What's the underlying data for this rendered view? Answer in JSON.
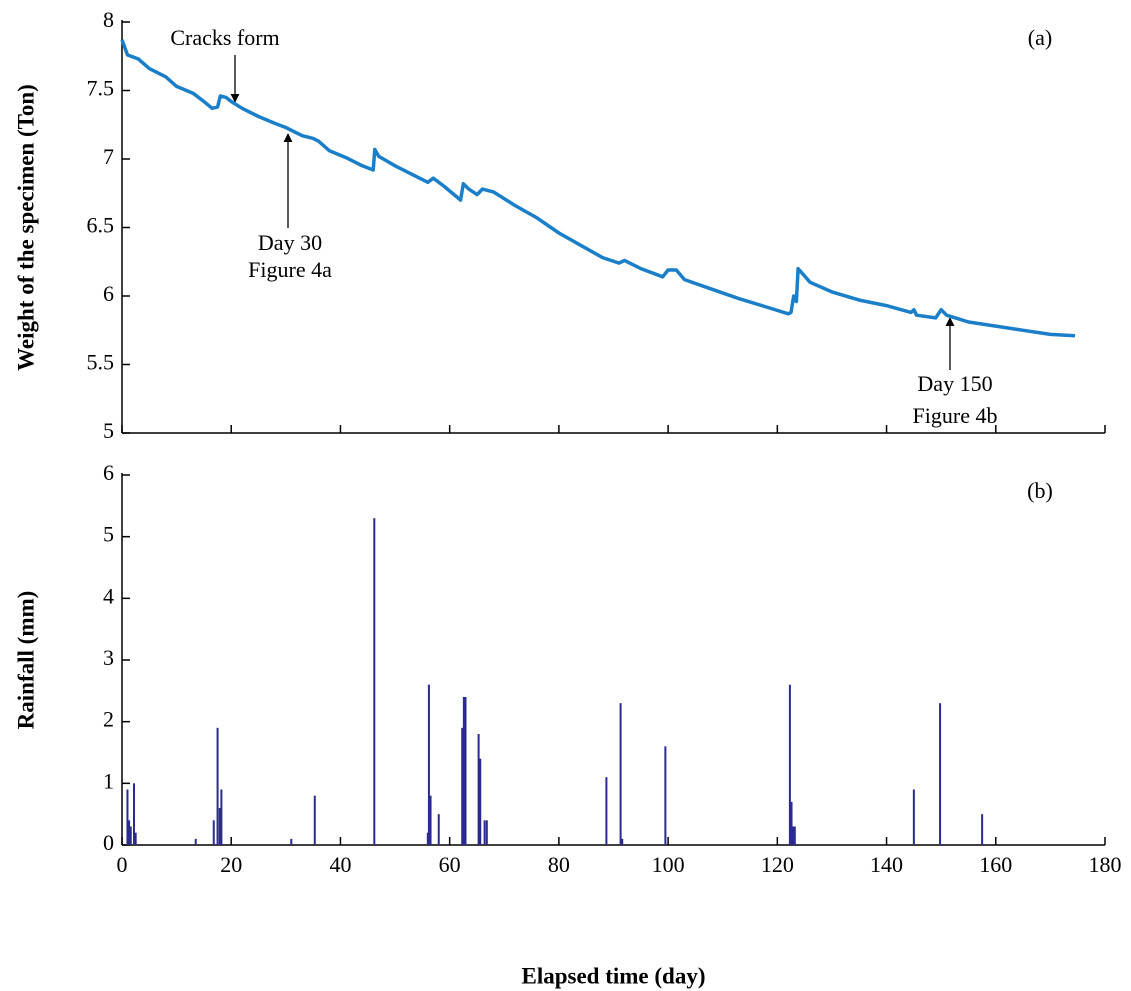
{
  "chart_data": [
    {
      "type": "line",
      "panel_label": "(a)",
      "ylabel": "Weight of the specimen (Ton)",
      "xlim": [
        0,
        180
      ],
      "xticks": [
        0,
        20,
        40,
        60,
        80,
        100,
        120,
        140,
        160,
        180
      ],
      "ylim": [
        5,
        8
      ],
      "yticks": [
        5,
        5.5,
        6,
        6.5,
        7,
        7.5,
        8
      ],
      "annotations": [
        {
          "text": [
            "Cracks form"
          ]
        },
        {
          "text": [
            "Day 30",
            "Figure 4a"
          ]
        },
        {
          "text": [
            "Day 150",
            "Figure 4b"
          ]
        }
      ],
      "series": [
        {
          "color": "#1a7fc8",
          "x": [
            0,
            1,
            3,
            5,
            8,
            10,
            13,
            15,
            16.5,
            17.5,
            18,
            19,
            20,
            22,
            25,
            28,
            30,
            33,
            35,
            36,
            38,
            41,
            44,
            46,
            46.3,
            47,
            50,
            53,
            56,
            57,
            59,
            62,
            62.5,
            63.5,
            65,
            66,
            68,
            72,
            76,
            80,
            84,
            88,
            91,
            92,
            95,
            99,
            100,
            101.5,
            103,
            108,
            113,
            118,
            122,
            122.5,
            123,
            123.5,
            123.8,
            126,
            130,
            135,
            140,
            144.5,
            145,
            145.5,
            149,
            150,
            151,
            155,
            160,
            165,
            170,
            174.5
          ],
          "values": [
            7.87,
            7.76,
            7.73,
            7.66,
            7.6,
            7.53,
            7.48,
            7.42,
            7.37,
            7.38,
            7.46,
            7.45,
            7.42,
            7.37,
            7.31,
            7.26,
            7.23,
            7.17,
            7.15,
            7.13,
            7.06,
            7.01,
            6.95,
            6.92,
            7.07,
            7.02,
            6.95,
            6.89,
            6.83,
            6.86,
            6.8,
            6.7,
            6.82,
            6.78,
            6.74,
            6.78,
            6.76,
            6.66,
            6.57,
            6.46,
            6.37,
            6.28,
            6.24,
            6.26,
            6.2,
            6.14,
            6.19,
            6.19,
            6.12,
            6.05,
            5.98,
            5.92,
            5.87,
            5.88,
            6.0,
            5.96,
            6.2,
            6.1,
            6.03,
            5.97,
            5.93,
            5.88,
            5.9,
            5.86,
            5.84,
            5.9,
            5.86,
            5.81,
            5.78,
            5.75,
            5.72,
            5.71
          ]
        }
      ]
    },
    {
      "type": "bar",
      "panel_label": "(b)",
      "ylabel": "Rainfall (mm)",
      "xlabel": "Elapsed time (day)",
      "xlim": [
        0,
        180
      ],
      "xticks": [
        0,
        20,
        40,
        60,
        80,
        100,
        120,
        140,
        160,
        180
      ],
      "ylim": [
        0,
        6
      ],
      "yticks": [
        0,
        1,
        2,
        3,
        4,
        5,
        6
      ],
      "series": [
        {
          "color": "#2b2b8f",
          "x": [
            1,
            1.3,
            1.6,
            2.2,
            2.5,
            13.5,
            16.8,
            17.5,
            17.9,
            18.2,
            31,
            35.3,
            46.2,
            56,
            56.2,
            56.5,
            58,
            62.3,
            62.6,
            62.9,
            65.3,
            65.6,
            66.4,
            66.8,
            88.7,
            91.3,
            91.6,
            99.5,
            122.3,
            122.6,
            122.9,
            123.2,
            145,
            149.8,
            157.5
          ],
          "values": [
            0.9,
            0.4,
            0.3,
            1.0,
            0.2,
            0.1,
            0.4,
            1.9,
            0.6,
            0.9,
            0.1,
            0.8,
            5.3,
            0.2,
            2.6,
            0.8,
            0.5,
            1.9,
            2.4,
            2.4,
            1.8,
            1.4,
            0.4,
            0.4,
            1.1,
            2.3,
            0.1,
            1.6,
            2.6,
            0.7,
            0.3,
            0.3,
            0.9,
            2.3,
            0.5
          ]
        }
      ]
    }
  ]
}
